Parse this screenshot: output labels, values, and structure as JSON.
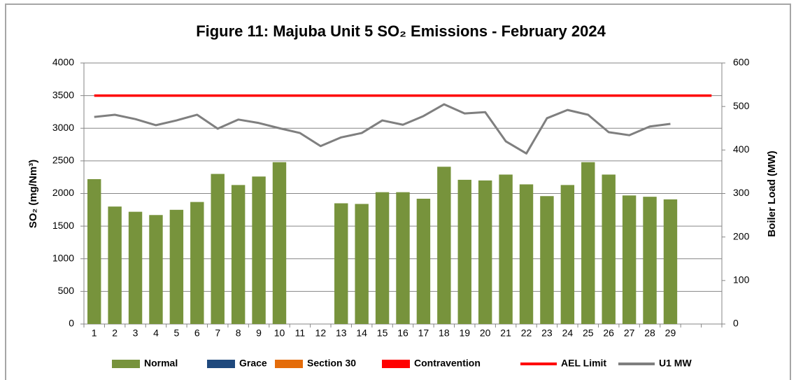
{
  "chart_data": {
    "type": "bar",
    "title": "Figure 11: Majuba Unit 5 SO₂ Emissions -  February 2024",
    "y_label": "SO₂ (mg/Nm³)",
    "y2_label": "Boiler Load (MW)",
    "categories": [
      "1",
      "2",
      "3",
      "4",
      "5",
      "6",
      "7",
      "8",
      "9",
      "10",
      "11",
      "12",
      "13",
      "14",
      "15",
      "16",
      "17",
      "18",
      "19",
      "20",
      "21",
      "22",
      "23",
      "24",
      "25",
      "26",
      "27",
      "28",
      "29",
      null,
      null
    ],
    "ylim": [
      0,
      4000
    ],
    "yticks": [
      0,
      500,
      1000,
      1500,
      2000,
      2500,
      3000,
      3500,
      4000
    ],
    "y2lim": [
      0,
      600
    ],
    "y2ticks": [
      0,
      100,
      200,
      300,
      400,
      500,
      600
    ],
    "grid": true,
    "legend": "bottom",
    "series": [
      {
        "name": "Normal",
        "type": "bar",
        "color": "#77933c",
        "values": [
          2220,
          1800,
          1720,
          1670,
          1750,
          1870,
          2300,
          2130,
          2260,
          2480,
          null,
          null,
          1850,
          1840,
          2020,
          2020,
          1920,
          2410,
          2210,
          2200,
          2290,
          2140,
          1960,
          2130,
          2480,
          2290,
          1970,
          1950,
          1910,
          null,
          null
        ]
      },
      {
        "name": "Grace",
        "type": "bar",
        "color": "#1f497d",
        "values": [
          null,
          null,
          null,
          null,
          null,
          null,
          null,
          null,
          null,
          null,
          null,
          null,
          null,
          null,
          null,
          null,
          null,
          null,
          null,
          null,
          null,
          null,
          null,
          null,
          null,
          null,
          null,
          null,
          null,
          null,
          null
        ]
      },
      {
        "name": "Section 30",
        "type": "bar",
        "color": "#e46c0a",
        "values": [
          null,
          null,
          null,
          null,
          null,
          null,
          null,
          null,
          null,
          null,
          null,
          null,
          null,
          null,
          null,
          null,
          null,
          null,
          null,
          null,
          null,
          null,
          null,
          null,
          null,
          null,
          null,
          null,
          null,
          null,
          null
        ]
      },
      {
        "name": "Contravention",
        "type": "bar",
        "color": "#ff0000",
        "values": [
          null,
          null,
          null,
          null,
          null,
          null,
          null,
          null,
          null,
          null,
          null,
          null,
          null,
          null,
          null,
          null,
          null,
          null,
          null,
          null,
          null,
          null,
          null,
          null,
          null,
          null,
          null,
          null,
          null,
          null,
          null
        ]
      },
      {
        "name": "AEL Limit",
        "type": "line",
        "color": "#ff0000",
        "values": [
          3500,
          3500,
          3500,
          3500,
          3500,
          3500,
          3500,
          3500,
          3500,
          3500,
          3500,
          3500,
          3500,
          3500,
          3500,
          3500,
          3500,
          3500,
          3500,
          3500,
          3500,
          3500,
          3500,
          3500,
          3500,
          3500,
          3500,
          3500,
          3500,
          3500,
          3500
        ]
      },
      {
        "name": "U1 MW",
        "type": "line",
        "axis": "y2",
        "color": "#7f7f7f",
        "values": [
          476,
          481,
          471,
          457,
          468,
          481,
          449,
          470,
          462,
          450,
          439,
          409,
          429,
          439,
          468,
          458,
          478,
          505,
          484,
          487,
          420,
          392,
          473,
          492,
          481,
          441,
          434,
          454,
          460,
          null,
          null
        ]
      }
    ]
  }
}
